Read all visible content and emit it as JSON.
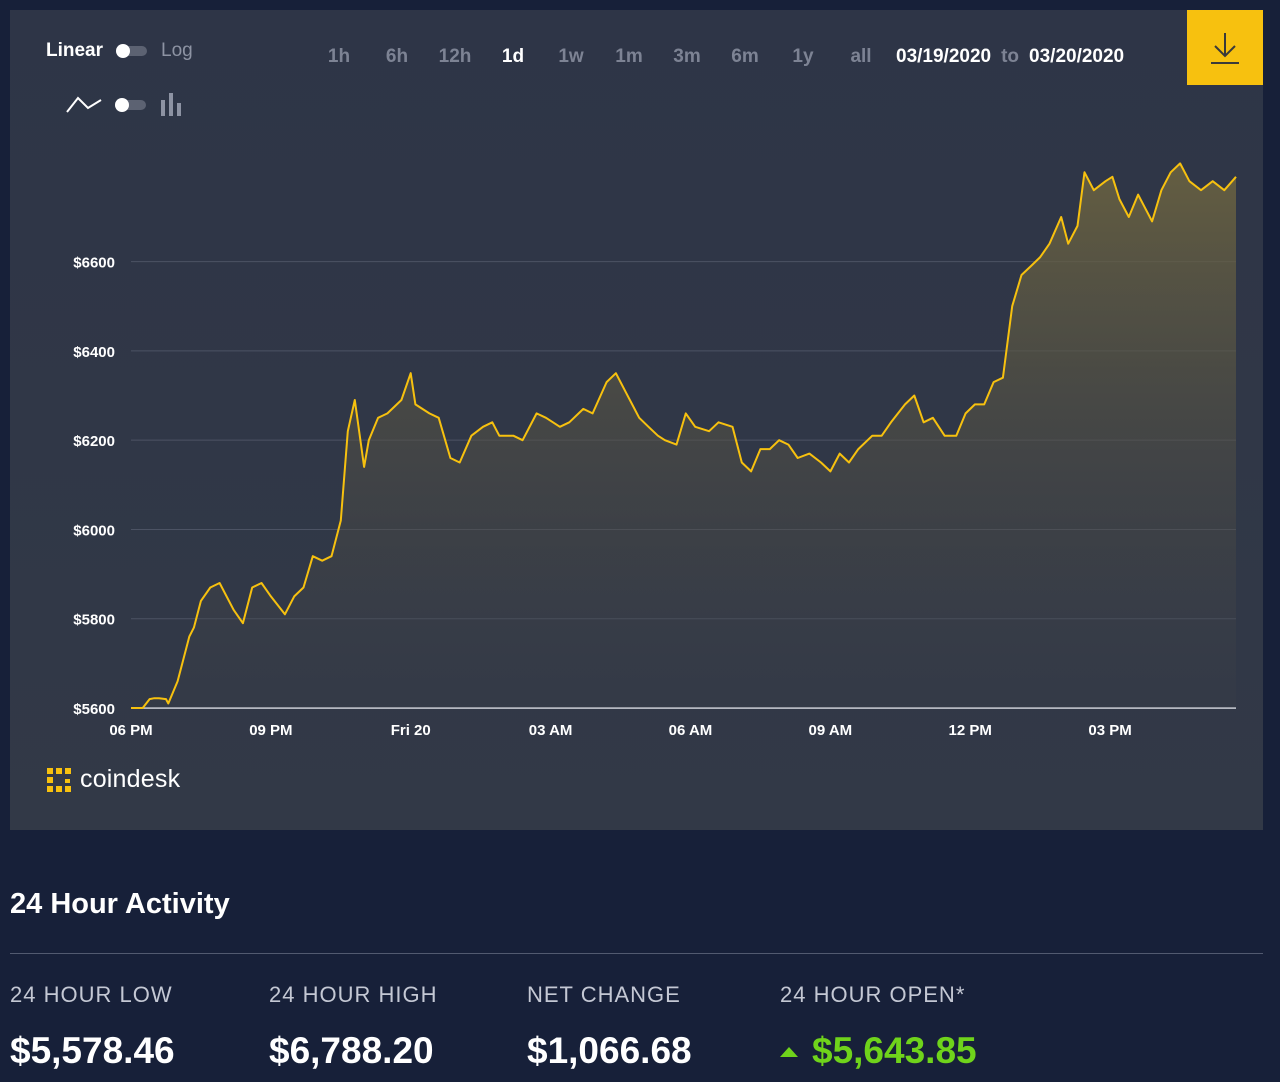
{
  "controls": {
    "scale_on": "Linear",
    "scale_off": "Log",
    "ranges": [
      "1h",
      "6h",
      "12h",
      "1d",
      "1w",
      "1m",
      "3m",
      "6m",
      "1y",
      "all"
    ],
    "active_range": "1d",
    "date_from": "03/19/2020",
    "date_to_word": "to",
    "date_to": "03/20/2020",
    "download_icon": "download-icon"
  },
  "brand": {
    "name": "coindesk",
    "accent": "#f7c10f"
  },
  "colors": {
    "line": "#f7c10f",
    "positive": "#6fd31b",
    "background": "#172039",
    "panel": "#313847"
  },
  "chart_data": {
    "type": "area",
    "x_unit": "hours from 06 PM, Mar 19 2020",
    "ylim": [
      5600,
      6850
    ],
    "xlim": [
      0,
      23.7
    ],
    "y_ticks": [
      5600,
      5800,
      6000,
      6200,
      6400,
      6600
    ],
    "y_tick_labels": [
      "$5600",
      "$5800",
      "$6000",
      "$6200",
      "$6400",
      "$6600"
    ],
    "x_ticks": [
      0,
      3,
      6,
      9,
      12,
      15,
      18,
      21
    ],
    "x_tick_labels": [
      "06 PM",
      "09 PM",
      "Fri 20",
      "03 AM",
      "06 AM",
      "09 AM",
      "12 PM",
      "03 PM"
    ],
    "grid": "horizontal",
    "series": [
      {
        "x": [
          0,
          0.25,
          0.4,
          0.5,
          0.6,
          0.75,
          0.8,
          1,
          1.1,
          1.25,
          1.35,
          1.5,
          1.7,
          1.9,
          2.2,
          2.4,
          2.6,
          2.8,
          3,
          3.3,
          3.5,
          3.7,
          3.9,
          4.1,
          4.3,
          4.5,
          4.65,
          4.8,
          5,
          5.1,
          5.3,
          5.5,
          5.8,
          6,
          6.1,
          6.4,
          6.6,
          6.85,
          7.05,
          7.3,
          7.55,
          7.75,
          7.9,
          8.2,
          8.4,
          8.7,
          8.9,
          9.2,
          9.4,
          9.7,
          9.9,
          10.2,
          10.4,
          10.6,
          10.9,
          11.1,
          11.3,
          11.45,
          11.7,
          11.9,
          12.1,
          12.4,
          12.6,
          12.9,
          13.1,
          13.3,
          13.5,
          13.7,
          13.9,
          14.1,
          14.3,
          14.55,
          14.8,
          15,
          15.2,
          15.4,
          15.6,
          15.9,
          16.1,
          16.3,
          16.6,
          16.8,
          17,
          17.2,
          17.45,
          17.7,
          17.9,
          18.1,
          18.3,
          18.5,
          18.7,
          18.9,
          19.1,
          19.3,
          19.5,
          19.7,
          19.95,
          20.1,
          20.3,
          20.45,
          20.65,
          20.9,
          21.05,
          21.2,
          21.4,
          21.6,
          21.9,
          22.1,
          22.3,
          22.5,
          22.7,
          22.95,
          23.2,
          23.45,
          23.7
        ],
        "values": [
          5600,
          5600,
          5620,
          5622,
          5622,
          5620,
          5610,
          5660,
          5700,
          5760,
          5780,
          5840,
          5870,
          5880,
          5820,
          5790,
          5870,
          5880,
          5850,
          5810,
          5850,
          5870,
          5940,
          5930,
          5940,
          6020,
          6220,
          6290,
          6140,
          6200,
          6250,
          6260,
          6290,
          6350,
          6280,
          6260,
          6250,
          6160,
          6150,
          6210,
          6230,
          6240,
          6210,
          6210,
          6200,
          6260,
          6250,
          6230,
          6240,
          6270,
          6260,
          6330,
          6350,
          6310,
          6250,
          6230,
          6210,
          6200,
          6190,
          6260,
          6230,
          6220,
          6240,
          6230,
          6150,
          6130,
          6180,
          6180,
          6200,
          6190,
          6160,
          6170,
          6150,
          6130,
          6170,
          6150,
          6180,
          6210,
          6210,
          6240,
          6280,
          6300,
          6240,
          6250,
          6210,
          6210,
          6260,
          6280,
          6280,
          6330,
          6340,
          6500,
          6570,
          6590,
          6610,
          6640,
          6700,
          6640,
          6680,
          6800,
          6760,
          6780,
          6790,
          6740,
          6700,
          6750,
          6690,
          6760,
          6800,
          6820,
          6780,
          6760,
          6780,
          6760,
          6790
        ]
      }
    ]
  },
  "activity": {
    "title": "24 Hour Activity",
    "stats": [
      {
        "label": "24 HOUR LOW",
        "value": "$5,578.46"
      },
      {
        "label": "24 HOUR HIGH",
        "value": "$6,788.20"
      },
      {
        "label": "NET CHANGE",
        "value": "$1,066.68"
      },
      {
        "label": "24 HOUR OPEN*",
        "value": "$5,643.85",
        "trend": "up"
      }
    ]
  }
}
